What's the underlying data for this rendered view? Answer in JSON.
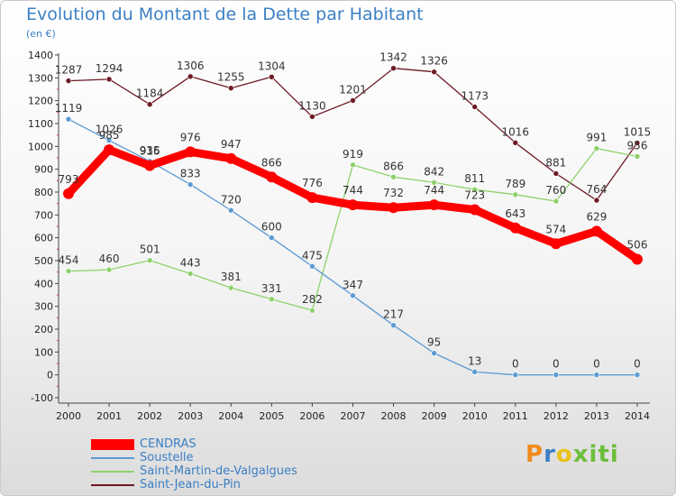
{
  "title": "Evolution du Montant de la Dette par Habitant",
  "subtitle": "(en €)",
  "logo": "Proxiti",
  "chart_data": {
    "type": "line",
    "x": [
      "2000",
      "2001",
      "2002",
      "2003",
      "2004",
      "2005",
      "2006",
      "2007",
      "2008",
      "2009",
      "2010",
      "2011",
      "2012",
      "2013",
      "2014"
    ],
    "ylim": [
      -100,
      1400
    ],
    "yticks": [
      -100,
      0,
      100,
      200,
      300,
      400,
      500,
      600,
      700,
      800,
      900,
      1000,
      1100,
      1200,
      1300,
      1400
    ],
    "grid": false,
    "legend_position": "bottom-left",
    "series": [
      {
        "name": "Saint-Jean-du-Pin",
        "color": "#6e1a24",
        "values": [
          1287,
          1294,
          1184,
          1306,
          1255,
          1304,
          1130,
          1201,
          1342,
          1326,
          1173,
          1016,
          881,
          764,
          1015
        ]
      },
      {
        "name": "Saint-Martin-de-Valgalgues",
        "color": "#8ed16b",
        "values": [
          454,
          460,
          501,
          443,
          381,
          331,
          282,
          919,
          866,
          842,
          811,
          789,
          760,
          991,
          956
        ]
      },
      {
        "name": "Soustelle",
        "color": "#5b9ad4",
        "values": [
          1119,
          1026,
          935,
          833,
          720,
          600,
          475,
          347,
          217,
          95,
          13,
          0,
          0,
          0,
          0
        ]
      },
      {
        "name": "CENDRAS",
        "color": "#ff0000",
        "values": [
          793,
          985,
          916,
          976,
          947,
          866,
          776,
          744,
          732,
          744,
          723,
          643,
          574,
          629,
          506
        ]
      }
    ]
  }
}
